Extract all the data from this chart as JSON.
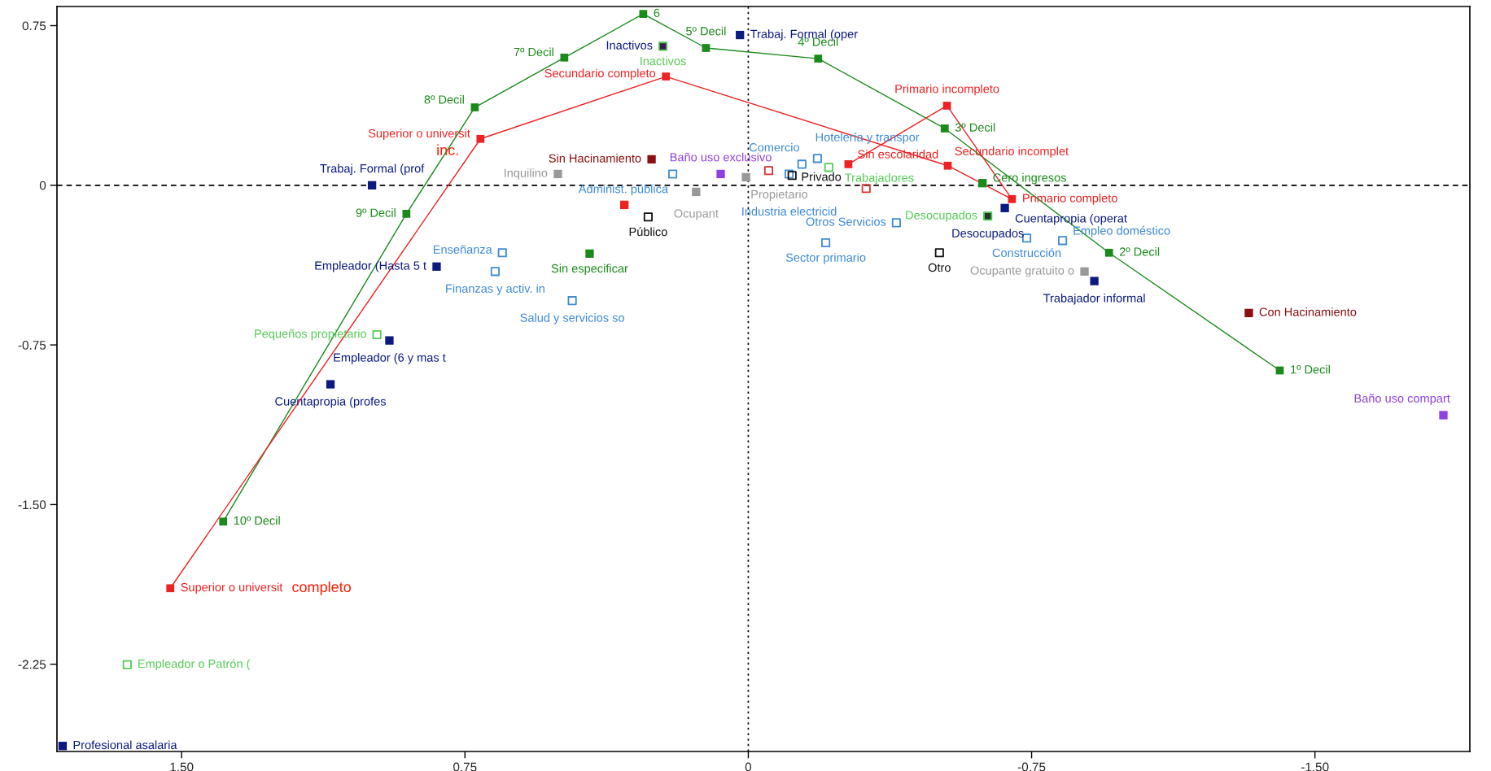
{
  "chart_data": {
    "type": "scatter",
    "xlim": [
      1.83,
      -1.91
    ],
    "ylim": [
      -2.66,
      0.84
    ],
    "xticks": [
      {
        "value": 1.5,
        "label": "1.50"
      },
      0.75,
      0,
      -0.75,
      {
        "value": -1.5,
        "label": "-1.50"
      }
    ],
    "yticks": [
      0.75,
      0,
      -0.75,
      {
        "value": -1.5,
        "label": "-1.50"
      },
      -2.25
    ],
    "grid": false,
    "legend": false,
    "ref_lines": [
      {
        "axis": "x",
        "value": 0,
        "color": "#000000",
        "line_style": "dotted"
      },
      {
        "axis": "y",
        "value": 0,
        "color": "#000000",
        "line_style": "dashed"
      }
    ],
    "annotations": [
      "completo",
      "inc.",
      {
        "text": "10º Decil",
        "x": 1.39,
        "y": -1.58
      },
      {
        "text": "9º Decil",
        "x": 0.905,
        "y": -0.134
      },
      {
        "text": "8º Decil",
        "x": 0.724,
        "y": 0.366
      },
      {
        "text": "7º Decil",
        "x": 0.487,
        "y": 0.6
      },
      {
        "text": "6",
        "x": 0.278,
        "y": 0.805
      },
      {
        "text": "5º Decil",
        "x": 0.112,
        "y": 0.645
      },
      {
        "text": "4º Decil",
        "x": -0.185,
        "y": 0.595
      },
      {
        "text": "3º Decil",
        "x": -0.52,
        "y": 0.267
      },
      {
        "text": "2º Decil",
        "x": -0.955,
        "y": -0.317
      },
      {
        "text": "1º Decil",
        "x": -1.407,
        "y": -0.87
      },
      {
        "text": "Superior o universit",
        "x": 1.53,
        "y": -1.893
      },
      {
        "text": "Superior o universit",
        "x": 0.709,
        "y": 0.218
      },
      {
        "text": "Secundario completo",
        "x": 0.218,
        "y": 0.511
      },
      {
        "text": "Secundario incomplet",
        "x": -0.528,
        "y": 0.092
      },
      {
        "text": "Primario completo",
        "x": -0.698,
        "y": -0.065
      },
      {
        "text": "Primario incompleto",
        "x": -0.526,
        "y": 0.374
      },
      {
        "text": "Sin escolaridad",
        "x": -0.265,
        "y": 0.099
      },
      {
        "text": "Trabaj. Formal (oper",
        "x": 0.022,
        "y": 0.706
      },
      {
        "text": "Trabaj. Formal (prof",
        "x": 0.996,
        "y": 0.0
      },
      {
        "text": "Empleador (Hasta 5 t",
        "x": 0.825,
        "y": -0.382
      },
      {
        "text": "Empleador (6 y mas t",
        "x": 0.95,
        "y": -0.729
      },
      {
        "text": "Cuentapropia (profes",
        "x": 1.106,
        "y": -0.935
      },
      {
        "text": "Profesional asalaria",
        "x": 1.815,
        "y": -2.634
      },
      {
        "text": "Cuentapropia (operat",
        "x": -0.679,
        "y": -0.107
      },
      {
        "text": "Trabajador informal",
        "x": -0.916,
        "y": -0.45
      },
      {
        "text": "Inactivos",
        "x": 0.226,
        "y": 0.653
      },
      {
        "text": "Desocupados",
        "x": -0.634,
        "y": -0.145
      },
      {
        "text": "Pequeños propietario",
        "x": 0.983,
        "y": -0.702
      },
      {
        "text": "Empleador o Patrón (",
        "x": 1.644,
        "y": -2.252
      },
      {
        "text": "Trabajadores",
        "x": -0.213,
        "y": 0.084
      },
      {
        "text": "Inactivos",
        "x": 0.226,
        "y": 0.653
      },
      {
        "text": "Desocupados",
        "x": -0.634,
        "y": -0.145
      },
      {
        "text": "Enseñanza",
        "x": 0.651,
        "y": -0.317
      },
      {
        "text": "Finanzas y activ. in",
        "x": 0.67,
        "y": -0.405
      },
      {
        "text": "Salud y servicios so",
        "x": 0.466,
        "y": -0.542
      },
      {
        "text": "Administ. pública",
        "x": 0.2,
        "y": 0.053
      },
      {
        "text": "Industria electricid",
        "x": -0.108,
        "y": 0.053
      },
      {
        "text": "Comercio",
        "x": -0.142,
        "y": 0.099
      },
      {
        "text": "Hotelería y transpor",
        "x": -0.183,
        "y": 0.126
      },
      {
        "text": "Otros Servicios",
        "x": -0.392,
        "y": -0.176
      },
      {
        "text": "Sector primario",
        "x": -0.205,
        "y": -0.27
      },
      {
        "text": "Construcción",
        "x": -0.737,
        "y": -0.248
      },
      {
        "text": "Empleo doméstico",
        "x": -0.832,
        "y": -0.26
      },
      {
        "text": "Inquilino",
        "x": 0.504,
        "y": 0.053
      },
      {
        "text": "Ocupant",
        "x": 0.138,
        "y": -0.031
      },
      {
        "text": "Propietario",
        "x": 0.006,
        "y": 0.038
      },
      {
        "text": "Ocupante gratuito o",
        "x": -0.89,
        "y": -0.405
      },
      {
        "text": "Público",
        "x": 0.265,
        "y": -0.149
      },
      {
        "text": "Privado",
        "x": -0.116,
        "y": 0.046
      },
      {
        "text": "Otro",
        "x": -0.506,
        "y": -0.317
      },
      {
        "text": "Sin Hacinamiento",
        "x": 0.256,
        "y": 0.122
      },
      {
        "text": "Con Hacinamiento",
        "x": -1.325,
        "y": -0.6
      },
      {
        "text": "Baño uso exclusivo",
        "x": 0.073,
        "y": 0.053
      },
      {
        "text": "Baño uso compart",
        "x": -1.84,
        "y": -1.08
      },
      {
        "text": "Sin especificar",
        "x": 0.42,
        "y": -0.321
      },
      {
        "text": "Cero ingresos",
        "x": -0.62,
        "y": 0.01
      }
    ],
    "series": [
      {
        "type": "line",
        "marker": "square",
        "line_style": "solid",
        "color": "#1a8a1a",
        "x": [
          1.39,
          0.905,
          0.724,
          0.487,
          0.278,
          0.112,
          -0.185,
          -0.52,
          -0.955,
          -1.407
        ],
        "values": [
          -1.58,
          -0.134,
          0.366,
          0.6,
          0.805,
          0.645,
          0.595,
          0.267,
          -0.317,
          -0.87
        ]
      },
      {
        "type": "line",
        "marker": "square",
        "line_style": "solid",
        "color": "#ee2222",
        "x": [
          1.53,
          0.709,
          0.218,
          -0.528,
          -0.698,
          -0.526,
          -0.265
        ],
        "values": [
          -1.893,
          0.218,
          0.511,
          0.092,
          -0.065,
          0.374,
          0.099
        ]
      },
      {
        "marker": "square",
        "color": "#0a1a80",
        "x": [
          0.022,
          0.996,
          0.825,
          0.95,
          1.106,
          1.815,
          -0.679,
          -0.916
        ],
        "values": [
          0.706,
          0.0,
          -0.382,
          -0.729,
          -0.935,
          -2.634,
          -0.107,
          -0.45
        ]
      },
      {
        "marker": "square",
        "colors": [
          "#3a1a50",
          "#1a3a22"
        ],
        "x": [
          0.226,
          -0.634
        ],
        "values": [
          0.653,
          -0.145
        ]
      },
      {
        "marker": "square",
        "color": "#55cc55",
        "x": [
          0.983,
          1.644,
          -0.213,
          0.226,
          -0.634
        ],
        "values": [
          -0.702,
          -2.252,
          0.084,
          0.653,
          -0.145
        ]
      },
      {
        "marker": "square",
        "color": "#3d8ad6",
        "x": [
          0.651,
          0.67,
          0.466,
          0.2,
          -0.108,
          -0.142,
          -0.183,
          -0.392,
          -0.205,
          -0.737,
          -0.832
        ],
        "values": [
          -0.317,
          -0.405,
          -0.542,
          0.053,
          0.053,
          0.099,
          0.126,
          -0.176,
          -0.27,
          -0.248,
          -0.26
        ]
      },
      {
        "marker": "square",
        "color": "#999999",
        "x": [
          0.504,
          0.138,
          0.006,
          -0.89
        ],
        "values": [
          0.053,
          -0.031,
          0.038,
          -0.405
        ]
      },
      {
        "marker": "square",
        "color": "#111111",
        "x": [
          0.265,
          -0.116,
          -0.506
        ],
        "values": [
          -0.149,
          0.046,
          -0.317
        ]
      },
      {
        "marker": "square",
        "color": "#8b1010",
        "x": [
          0.256,
          -1.325
        ],
        "values": [
          0.122,
          -0.6
        ]
      },
      {
        "marker": "square",
        "color": "#9040e0",
        "x": [
          0.073,
          -1.84
        ],
        "values": [
          0.053,
          -1.08
        ]
      },
      {
        "marker": "square",
        "color": "#1a8a1a",
        "x": [
          0.42,
          -0.62
        ],
        "values": [
          -0.321,
          0.01
        ]
      },
      {
        "marker": "square",
        "color": "#ee2222",
        "x": [
          0.328
        ],
        "values": [
          -0.092
        ]
      },
      {
        "marker": "square",
        "color": "#dd3333",
        "x": [
          -0.054,
          -0.312
        ],
        "values": [
          0.069,
          -0.015
        ]
      }
    ]
  }
}
